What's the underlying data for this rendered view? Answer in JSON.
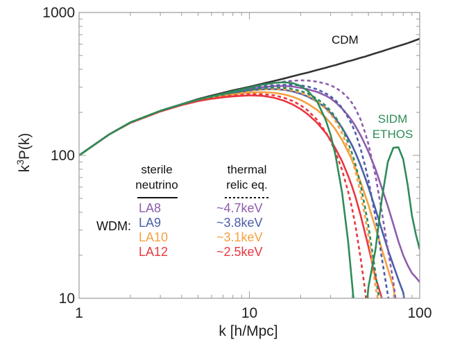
{
  "chart_data": {
    "type": "line",
    "title": "",
    "xlabel": "k [h/Mpc]",
    "ylabel": "k³P(k)",
    "ylabel_base": "k",
    "ylabel_sup": "3",
    "ylabel_rest": "P(k)",
    "xscale": "log",
    "yscale": "log",
    "xlim": [
      1,
      100
    ],
    "ylim": [
      10,
      1000
    ],
    "xticks": [
      1,
      10,
      100
    ],
    "xtick_labels": [
      "1",
      "10",
      "100"
    ],
    "yticks": [
      10,
      100,
      1000
    ],
    "ytick_labels": [
      "10",
      "100",
      "1000"
    ],
    "x": [
      1,
      1.5,
      2,
      3,
      4,
      5,
      6,
      7,
      8,
      10,
      12,
      14,
      16,
      18,
      20,
      22,
      25,
      28,
      30,
      32,
      35,
      38,
      40,
      42,
      45,
      48,
      50,
      55,
      60,
      65,
      70,
      75,
      80,
      85,
      90,
      95,
      100
    ],
    "series": [
      {
        "name": "CDM",
        "color": "#333333",
        "dash": false,
        "values": [
          100,
          140,
          170,
          205,
          228,
          248,
          262,
          274,
          285,
          302,
          318,
          332,
          345,
          358,
          370,
          380,
          396,
          410,
          420,
          428,
          442,
          455,
          462,
          470,
          482,
          492,
          500,
          518,
          535,
          552,
          568,
          582,
          596,
          610,
          625,
          640,
          655
        ]
      },
      {
        "name": "LA8",
        "color": "#8e5cad",
        "dash": false,
        "values": [
          100,
          140,
          170,
          205,
          228,
          246,
          258,
          268,
          277,
          291,
          300,
          305,
          306,
          303,
          297,
          290,
          278,
          262,
          250,
          236,
          213,
          190,
          175,
          160,
          138,
          118,
          106,
          80,
          59,
          44,
          33,
          25,
          20,
          17,
          15,
          14,
          13
        ]
      },
      {
        "name": "LA9",
        "color": "#4b5ea8",
        "dash": false,
        "values": [
          100,
          140,
          170,
          205,
          228,
          245,
          256,
          265,
          273,
          284,
          290,
          291,
          288,
          280,
          270,
          258,
          238,
          215,
          198,
          181,
          156,
          132,
          118,
          104,
          85,
          69,
          60,
          42,
          30,
          22,
          17,
          13.5,
          11,
          null,
          null,
          null,
          null
        ]
      },
      {
        "name": "LA10",
        "color": "#f5a140",
        "dash": false,
        "values": [
          100,
          140,
          170,
          205,
          227,
          243,
          253,
          261,
          267,
          275,
          277,
          274,
          267,
          257,
          244,
          230,
          208,
          184,
          168,
          152,
          128,
          106,
          93,
          81,
          65,
          52,
          45,
          31,
          22,
          16,
          12,
          null,
          null,
          null,
          null,
          null,
          null
        ]
      },
      {
        "name": "LA12",
        "color": "#e8373f",
        "dash": false,
        "values": [
          100,
          140,
          169,
          203,
          225,
          240,
          249,
          255,
          259,
          263,
          261,
          253,
          241,
          227,
          211,
          194,
          169,
          144,
          128,
          112,
          91,
          72,
          61,
          51,
          38,
          28,
          23,
          14,
          10,
          null,
          null,
          null,
          null,
          null,
          null,
          null,
          null
        ]
      },
      {
        "name": "~4.7keV",
        "color": "#8e5cad",
        "dash": true,
        "values": [
          100,
          140,
          170,
          205,
          228,
          246,
          259,
          270,
          280,
          296,
          310,
          320,
          328,
          333,
          335,
          334,
          328,
          318,
          309,
          298,
          277,
          252,
          233,
          212,
          178,
          142,
          120,
          72,
          40,
          22,
          13,
          null,
          null,
          null,
          null,
          null,
          null
        ]
      },
      {
        "name": "~3.8keV",
        "color": "#4b5ea8",
        "dash": true,
        "values": [
          100,
          140,
          170,
          205,
          228,
          245,
          258,
          268,
          277,
          291,
          302,
          309,
          312,
          312,
          309,
          303,
          290,
          272,
          259,
          243,
          215,
          184,
          164,
          143,
          111,
          83,
          67,
          37,
          19,
          10.5,
          null,
          null,
          null,
          null,
          null,
          null,
          null
        ]
      },
      {
        "name": "~3.1keV",
        "color": "#f5a140",
        "dash": true,
        "values": [
          100,
          140,
          170,
          205,
          227,
          243,
          255,
          264,
          272,
          283,
          290,
          292,
          290,
          284,
          274,
          262,
          239,
          212,
          194,
          174,
          143,
          112,
          94,
          77,
          54,
          36,
          27,
          12,
          null,
          null,
          null,
          null,
          null,
          null,
          null,
          null,
          null
        ]
      },
      {
        "name": "~2.5keV",
        "color": "#e8373f",
        "dash": true,
        "values": [
          100,
          140,
          169,
          203,
          225,
          240,
          250,
          257,
          262,
          268,
          268,
          263,
          253,
          240,
          224,
          206,
          177,
          146,
          126,
          106,
          79,
          56,
          43,
          32,
          19,
          11,
          null,
          null,
          null,
          null,
          null,
          null,
          null,
          null,
          null,
          null,
          null
        ]
      },
      {
        "name": "WDM thermal (green dotted)",
        "color": "#2e8b57",
        "dash": true,
        "values": [
          100,
          140,
          170,
          205,
          228,
          245,
          257,
          266,
          274,
          287,
          295,
          298,
          297,
          291,
          282,
          271,
          249,
          223,
          205,
          186,
          155,
          123,
          104,
          86,
          62,
          42,
          32,
          15,
          null,
          null,
          null,
          null,
          null,
          null,
          null,
          null,
          null
        ]
      },
      {
        "name": "SIDM ETHOS",
        "color": "#2e8b57",
        "dash": false,
        "values": [
          100,
          140,
          170,
          205,
          228,
          246,
          259,
          270,
          281,
          298,
          313,
          322,
          325,
          320,
          306,
          283,
          238,
          178,
          139,
          101,
          55,
          25,
          13,
          null,
          null,
          null,
          12,
          22,
          50,
          90,
          113,
          114,
          94,
          62,
          38,
          28,
          22
        ]
      }
    ],
    "annotations": {
      "cdm_label": "CDM",
      "sidm_line1": "SIDM",
      "sidm_line2": "ETHOS",
      "sterile_line1": "sterile",
      "sterile_line2": "neutrino",
      "thermal_line1": "thermal",
      "thermal_line2": "relic eq.",
      "wdm_label": "WDM:",
      "legend_rows": [
        {
          "sterile": "LA8",
          "thermal": "~4.7keV",
          "color": "#8e5cad"
        },
        {
          "sterile": "LA9",
          "thermal": "~3.8keV",
          "color": "#4b5ea8"
        },
        {
          "sterile": "LA10",
          "thermal": "~3.1keV",
          "color": "#f5a140"
        },
        {
          "sterile": "LA12",
          "thermal": "~2.5keV",
          "color": "#e8373f"
        }
      ]
    }
  },
  "colors": {
    "cdm": "#333333",
    "sidm": "#2e8b57",
    "axis": "#9a9a9a",
    "text": "#222222"
  }
}
